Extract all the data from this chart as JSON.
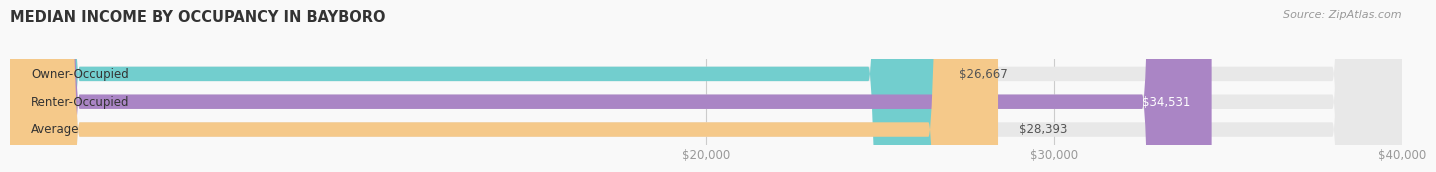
{
  "title": "MEDIAN INCOME BY OCCUPANCY IN BAYBORO",
  "source": "Source: ZipAtlas.com",
  "categories": [
    "Owner-Occupied",
    "Renter-Occupied",
    "Average"
  ],
  "values": [
    26667,
    34531,
    28393
  ],
  "value_labels": [
    "$26,667",
    "$34,531",
    "$28,393"
  ],
  "bar_colors": [
    "#72cece",
    "#aa85c5",
    "#f5c98a"
  ],
  "bar_bg_color": "#e8e8e8",
  "bg_color": "#f9f9f9",
  "xlim": [
    0,
    40000
  ],
  "xticks": [
    20000,
    30000,
    40000
  ],
  "xtick_labels": [
    "$20,000",
    "$30,000",
    "$40,000"
  ],
  "title_fontsize": 10.5,
  "label_fontsize": 8.5,
  "tick_fontsize": 8.5,
  "source_fontsize": 8,
  "bar_height": 0.52,
  "label_inside_threshold": 30000
}
